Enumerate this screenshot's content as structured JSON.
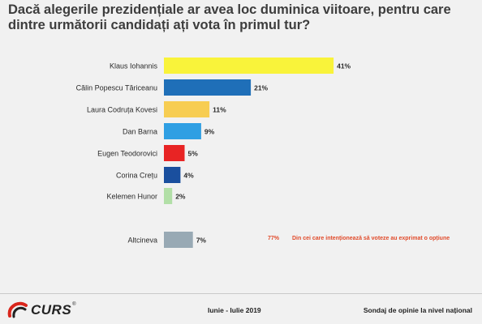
{
  "title": "Dacă alegerile prezidențiale ar avea loc duminica viitoare, pentru care dintre următorii candidați ați vota în primul tur?",
  "chart_data": {
    "type": "bar",
    "orientation": "horizontal",
    "unit": "%",
    "categories": [
      "Klaus Iohannis",
      "Călin Popescu Tăriceanu",
      "Laura Codruța Kovesi",
      "Dan Barna",
      "Eugen Teodorovici",
      "Corina Crețu",
      "Kelemen Hunor",
      "Altcineva"
    ],
    "values": [
      41,
      21,
      11,
      9,
      5,
      4,
      2,
      7
    ],
    "value_labels": [
      "41%",
      "21%",
      "11%",
      "9%",
      "5%",
      "4%",
      "2%",
      "7%"
    ],
    "colors": [
      "#f9f33a",
      "#1f6fb8",
      "#f7cd52",
      "#2f9fe3",
      "#e82424",
      "#1a4f9e",
      "#b2dfa7",
      "#98a9b4"
    ],
    "grid": false,
    "legend": "none"
  },
  "annotation": {
    "value": "77%",
    "text": "Din cei care intenționează să voteze au exprimat o opțiune",
    "color": "#e14b2b"
  },
  "footer": {
    "logo": "CURS",
    "logo_mark": "®",
    "period": "Iunie - Iulie 2019",
    "survey": "Sondaj de opinie la nivel național"
  }
}
